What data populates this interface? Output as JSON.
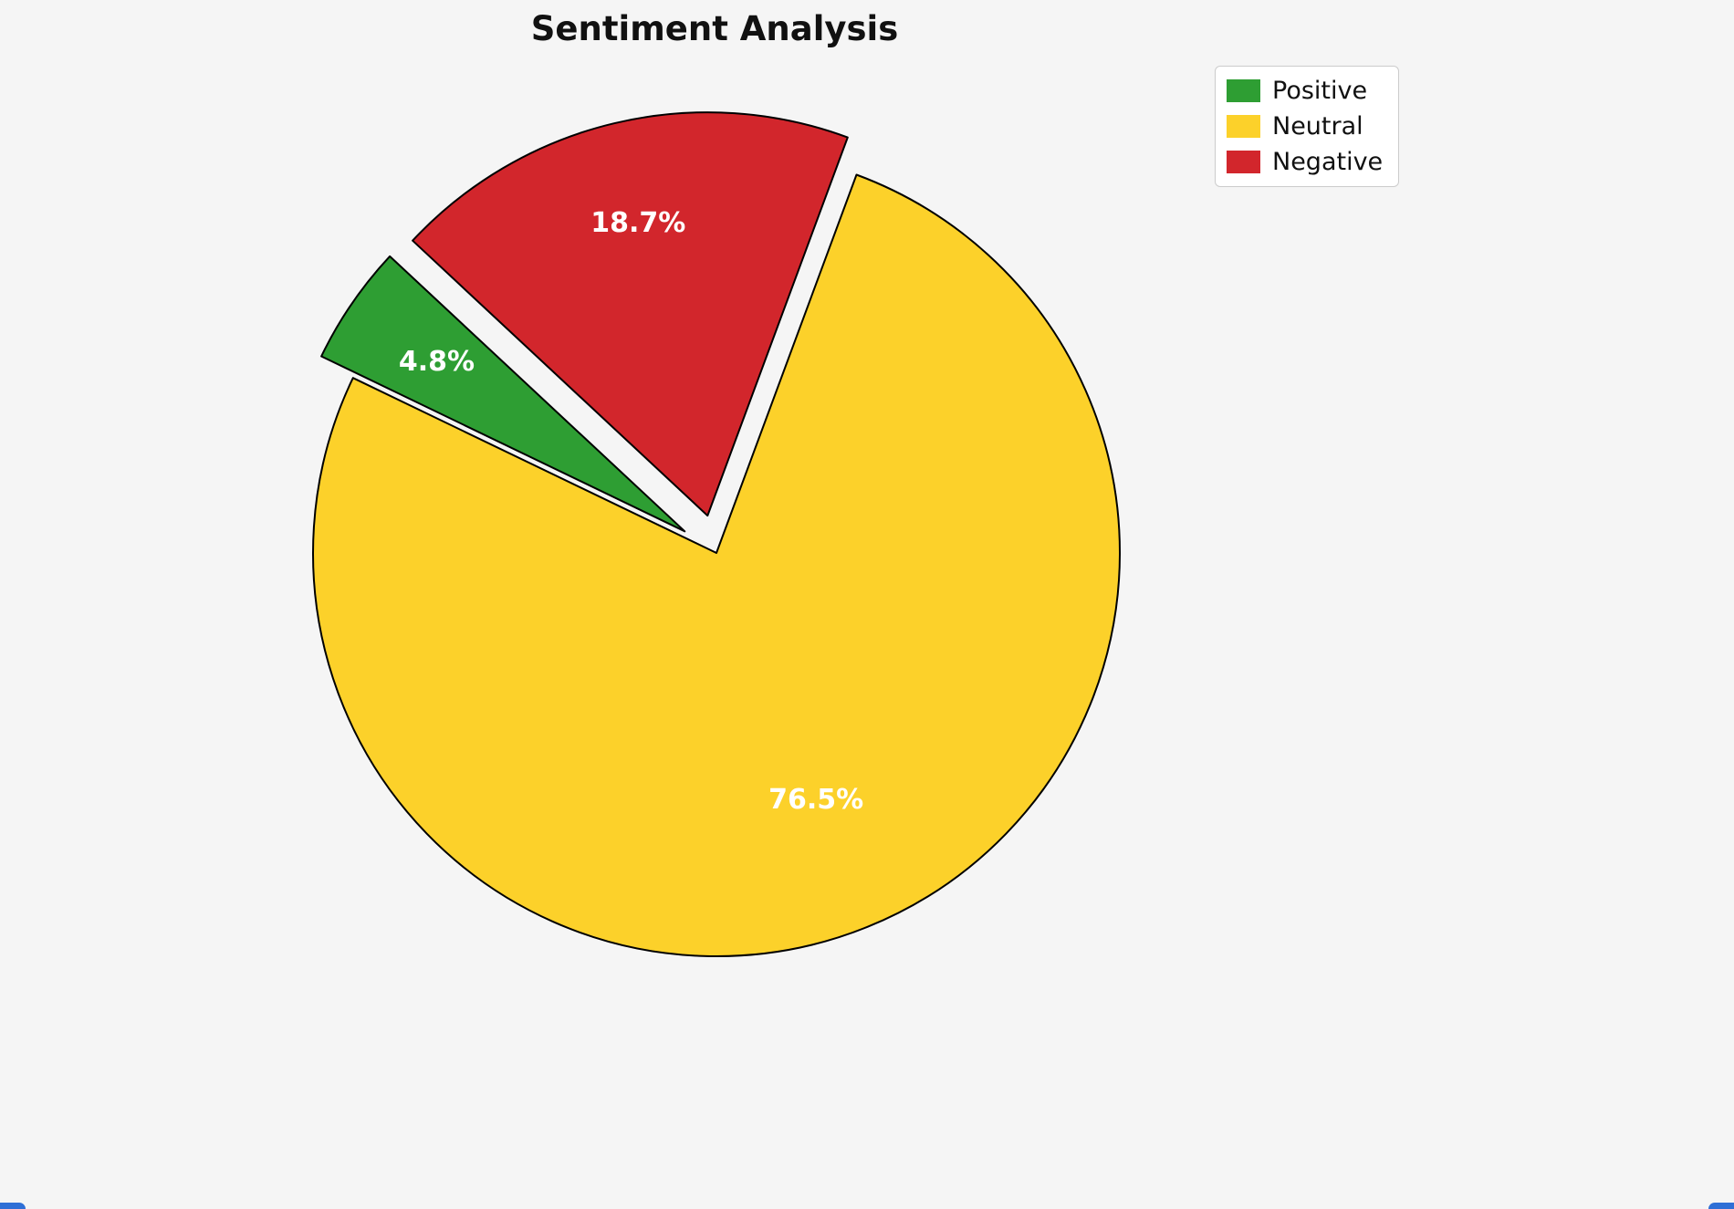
{
  "chart_data": {
    "type": "pie",
    "title": "Sentiment Analysis",
    "slices": [
      {
        "label": "Positive",
        "value": 4.8,
        "display": "4.8%",
        "color": "#2E9E33",
        "exploded": true
      },
      {
        "label": "Neutral",
        "value": 76.5,
        "display": "76.5%",
        "color": "#FCD12A",
        "exploded": false
      },
      {
        "label": "Negative",
        "value": 18.7,
        "display": "18.7%",
        "color": "#D2262C",
        "exploded": true
      }
    ],
    "legend": {
      "position": "top-right",
      "entries": [
        "Positive",
        "Neutral",
        "Negative"
      ]
    },
    "start_angle_deg": 137,
    "direction": "counterclockwise",
    "explode_fraction": 0.095,
    "label_color": "#ffffff",
    "wedge_edge_color": "#000000",
    "background": "#f5f5f5",
    "bottom_accent_color": "#2F6FD6"
  }
}
